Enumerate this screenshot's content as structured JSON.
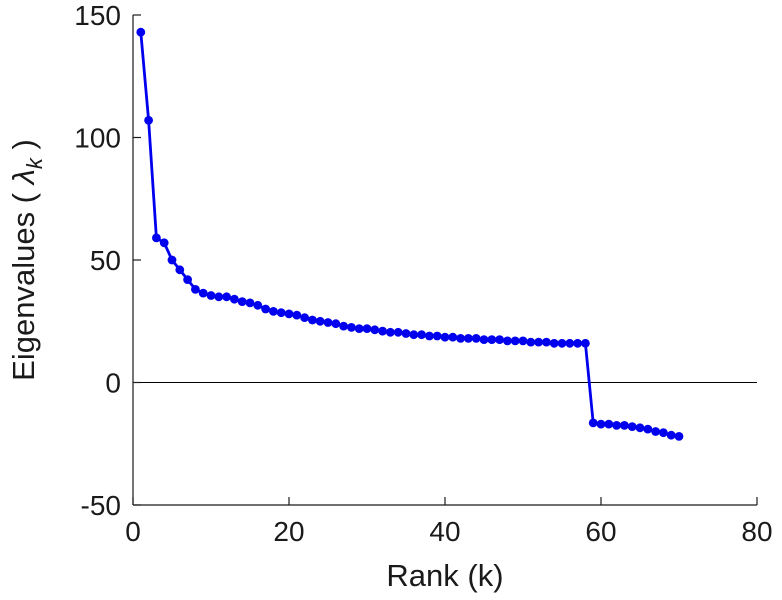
{
  "figure": {
    "background": "#ffffff",
    "axis_color": "#1a1a1a"
  },
  "chart_data": {
    "type": "line",
    "title": "",
    "xlabel": "Rank (k)",
    "ylabel_text": "Eigenvalues ( lambda_k )",
    "ylabel_parts": [
      "Eigenvalues ( ",
      "λ",
      "k",
      " )"
    ],
    "x": [
      1,
      2,
      3,
      4,
      5,
      6,
      7,
      8,
      9,
      10,
      11,
      12,
      13,
      14,
      15,
      16,
      17,
      18,
      19,
      20,
      21,
      22,
      23,
      24,
      25,
      26,
      27,
      28,
      29,
      30,
      31,
      32,
      33,
      34,
      35,
      36,
      37,
      38,
      39,
      40,
      41,
      42,
      43,
      44,
      45,
      46,
      47,
      48,
      49,
      50,
      51,
      52,
      53,
      54,
      55,
      56,
      57,
      58,
      59,
      60,
      61,
      62,
      63,
      64,
      65,
      66,
      67,
      68,
      69,
      70
    ],
    "y": [
      143,
      107,
      59,
      57,
      50,
      46,
      42,
      38,
      36.5,
      35.5,
      35,
      35,
      34,
      33,
      32.5,
      31.5,
      30,
      29,
      28.5,
      28,
      27.5,
      26.5,
      25.5,
      25,
      24.5,
      24,
      23,
      22.5,
      22,
      22,
      21.5,
      21,
      20.5,
      20.5,
      20,
      19.5,
      19.5,
      19,
      19,
      18.5,
      18.5,
      18,
      18,
      18,
      17.5,
      17.5,
      17.5,
      17,
      17,
      17,
      16.5,
      16.5,
      16.5,
      16,
      16,
      16,
      16,
      16,
      -16.5,
      -17,
      -17,
      -17.5,
      -17.5,
      -18,
      -18.5,
      -19,
      -20,
      -20.5,
      -21.5,
      -22
    ],
    "xlim": [
      0,
      80
    ],
    "ylim": [
      -50,
      150
    ],
    "xticks": [
      0,
      20,
      40,
      60,
      80
    ],
    "yticks": [
      -50,
      0,
      50,
      100,
      150
    ],
    "xtick_labels": [
      "0",
      "20",
      "40",
      "60",
      "80"
    ],
    "ytick_labels": [
      "-50",
      "0",
      "50",
      "100",
      "150"
    ],
    "line_color": "#0000ee",
    "marker": "circle",
    "zero_line": true,
    "grid": false,
    "legend": null
  }
}
